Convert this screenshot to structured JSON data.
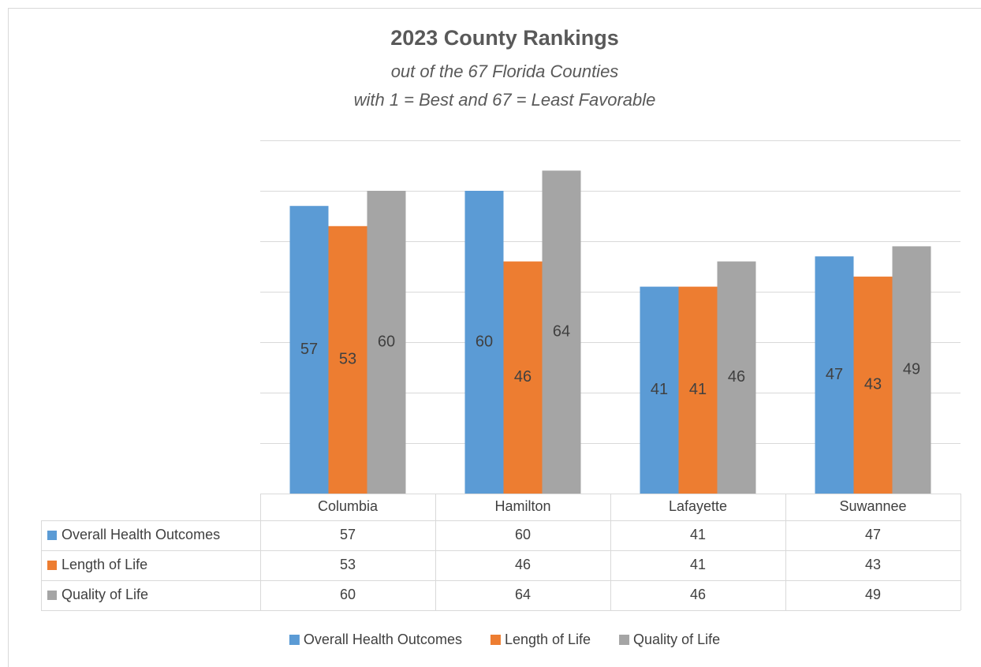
{
  "chart_data": {
    "type": "bar",
    "title": "2023 County Rankings",
    "subtitle": [
      "out of the 67 Florida Counties",
      "with 1 = Best and 67 = Least Favorable"
    ],
    "categories": [
      "Columbia",
      "Hamilton",
      "Lafayette",
      "Suwannee"
    ],
    "series": [
      {
        "name": "Overall Health Outcomes",
        "color": "#5b9bd5",
        "values": [
          57,
          60,
          41,
          47
        ]
      },
      {
        "name": "Length of Life",
        "color": "#ed7d31",
        "values": [
          53,
          46,
          41,
          43
        ]
      },
      {
        "name": "Quality of Life",
        "color": "#a5a5a5",
        "values": [
          60,
          64,
          46,
          49
        ]
      }
    ],
    "ylim": [
      0,
      70
    ],
    "yticks": [
      0,
      10,
      20,
      30,
      40,
      50,
      60,
      70
    ],
    "grid": true,
    "data_table": true,
    "legend": "bottom"
  }
}
